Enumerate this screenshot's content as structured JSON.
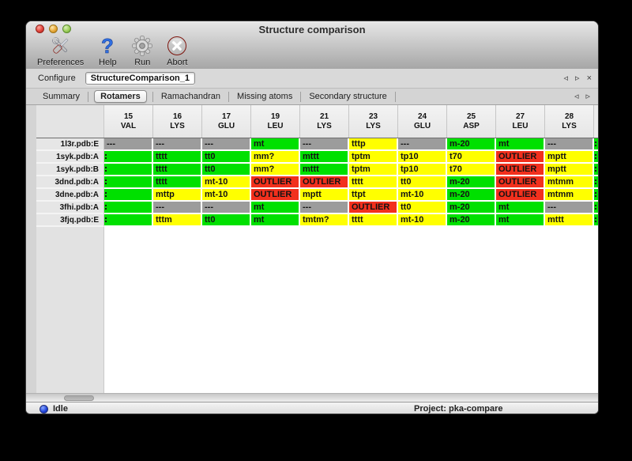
{
  "window": {
    "title": "Structure comparison",
    "controls": [
      "close",
      "minimize",
      "zoom"
    ]
  },
  "toolbar": {
    "items": [
      {
        "label": "Preferences",
        "icon": "preferences-tools-icon"
      },
      {
        "label": "Help",
        "icon": "help-question-icon"
      },
      {
        "label": "Run",
        "icon": "run-gear-icon"
      },
      {
        "label": "Abort",
        "icon": "abort-icon"
      }
    ]
  },
  "configure": {
    "label": "Configure",
    "value": "StructureComparison_1"
  },
  "pane_nav": {
    "prev": "◃",
    "next": "▹",
    "close": "×"
  },
  "tabs": {
    "items": [
      "Summary",
      "Rotamers",
      "Ramachandran",
      "Missing atoms",
      "Secondary structure"
    ],
    "selected_index": 1
  },
  "table": {
    "columns": [
      {
        "number": "15",
        "residue": "VAL"
      },
      {
        "number": "16",
        "residue": "LYS"
      },
      {
        "number": "17",
        "residue": "GLU"
      },
      {
        "number": "19",
        "residue": "LEU"
      },
      {
        "number": "21",
        "residue": "LYS"
      },
      {
        "number": "23",
        "residue": "LYS"
      },
      {
        "number": "24",
        "residue": "GLU"
      },
      {
        "number": "25",
        "residue": "ASP"
      },
      {
        "number": "27",
        "residue": "LEU"
      },
      {
        "number": "28",
        "residue": "LYS"
      }
    ],
    "rows": [
      {
        "label": "1l3r.pdb:E",
        "cells": [
          {
            "text": "---",
            "color": "gray"
          },
          {
            "text": "---",
            "color": "gray"
          },
          {
            "text": "---",
            "color": "gray"
          },
          {
            "text": "mt",
            "color": "green"
          },
          {
            "text": "---",
            "color": "gray"
          },
          {
            "text": "tttp",
            "color": "yellow"
          },
          {
            "text": "---",
            "color": "gray"
          },
          {
            "text": "m-20",
            "color": "green"
          },
          {
            "text": "mt",
            "color": "green"
          },
          {
            "text": "---",
            "color": "gray"
          }
        ]
      },
      {
        "label": "1syk.pdb:A",
        "cells": [
          {
            "text": "",
            "color": "green",
            "clipped": true
          },
          {
            "text": "tttt",
            "color": "green"
          },
          {
            "text": "tt0",
            "color": "green"
          },
          {
            "text": "mm?",
            "color": "yellow"
          },
          {
            "text": "mttt",
            "color": "green"
          },
          {
            "text": "tptm",
            "color": "yellow"
          },
          {
            "text": "tp10",
            "color": "yellow"
          },
          {
            "text": "t70",
            "color": "yellow"
          },
          {
            "text": "OUTLIER",
            "color": "red"
          },
          {
            "text": "mptt",
            "color": "yellow"
          }
        ]
      },
      {
        "label": "1syk.pdb:B",
        "cells": [
          {
            "text": "",
            "color": "green",
            "clipped": true
          },
          {
            "text": "tttt",
            "color": "green"
          },
          {
            "text": "tt0",
            "color": "green"
          },
          {
            "text": "mm?",
            "color": "yellow"
          },
          {
            "text": "mttt",
            "color": "green"
          },
          {
            "text": "tptm",
            "color": "yellow"
          },
          {
            "text": "tp10",
            "color": "yellow"
          },
          {
            "text": "t70",
            "color": "yellow"
          },
          {
            "text": "OUTLIER",
            "color": "red"
          },
          {
            "text": "mptt",
            "color": "yellow"
          }
        ]
      },
      {
        "label": "3dnd.pdb:A",
        "cells": [
          {
            "text": "",
            "color": "green",
            "clipped": true
          },
          {
            "text": "tttt",
            "color": "green"
          },
          {
            "text": "mt-10",
            "color": "yellow"
          },
          {
            "text": "OUTLIER",
            "color": "red"
          },
          {
            "text": "OUTLIER",
            "color": "red"
          },
          {
            "text": "tttt",
            "color": "yellow"
          },
          {
            "text": "tt0",
            "color": "yellow"
          },
          {
            "text": "m-20",
            "color": "green"
          },
          {
            "text": "OUTLIER",
            "color": "red"
          },
          {
            "text": "mtmm",
            "color": "yellow"
          }
        ]
      },
      {
        "label": "3dne.pdb:A",
        "cells": [
          {
            "text": "",
            "color": "green",
            "clipped": true
          },
          {
            "text": "mttp",
            "color": "yellow"
          },
          {
            "text": "mt-10",
            "color": "yellow"
          },
          {
            "text": "OUTLIER",
            "color": "red"
          },
          {
            "text": "mptt",
            "color": "yellow"
          },
          {
            "text": "ttpt",
            "color": "yellow"
          },
          {
            "text": "mt-10",
            "color": "yellow"
          },
          {
            "text": "m-20",
            "color": "green"
          },
          {
            "text": "OUTLIER",
            "color": "red"
          },
          {
            "text": "mtmm",
            "color": "yellow"
          }
        ]
      },
      {
        "label": "3fhi.pdb:A",
        "cells": [
          {
            "text": "",
            "color": "green",
            "clipped": true
          },
          {
            "text": "---",
            "color": "gray"
          },
          {
            "text": "---",
            "color": "gray"
          },
          {
            "text": "mt",
            "color": "green"
          },
          {
            "text": "---",
            "color": "gray"
          },
          {
            "text": "OUTLIER",
            "color": "red"
          },
          {
            "text": "tt0",
            "color": "yellow"
          },
          {
            "text": "m-20",
            "color": "green"
          },
          {
            "text": "mt",
            "color": "green"
          },
          {
            "text": "---",
            "color": "gray"
          }
        ]
      },
      {
        "label": "3fjq.pdb:E",
        "cells": [
          {
            "text": "",
            "color": "green",
            "clipped": true
          },
          {
            "text": "tttm",
            "color": "yellow"
          },
          {
            "text": "tt0",
            "color": "green"
          },
          {
            "text": "mt",
            "color": "green"
          },
          {
            "text": "tmtm?",
            "color": "yellow"
          },
          {
            "text": "tttt",
            "color": "yellow"
          },
          {
            "text": "mt-10",
            "color": "yellow"
          },
          {
            "text": "m-20",
            "color": "green"
          },
          {
            "text": "mt",
            "color": "green"
          },
          {
            "text": "mttt",
            "color": "yellow"
          }
        ]
      }
    ],
    "clipped_right_column_color": "green"
  },
  "statusbar": {
    "status": "Idle",
    "project": "Project: pka-compare"
  },
  "colors": {
    "green": "#00e000",
    "yellow": "#ffff00",
    "red": "#f2301d",
    "gray": "#9c9c9c"
  }
}
